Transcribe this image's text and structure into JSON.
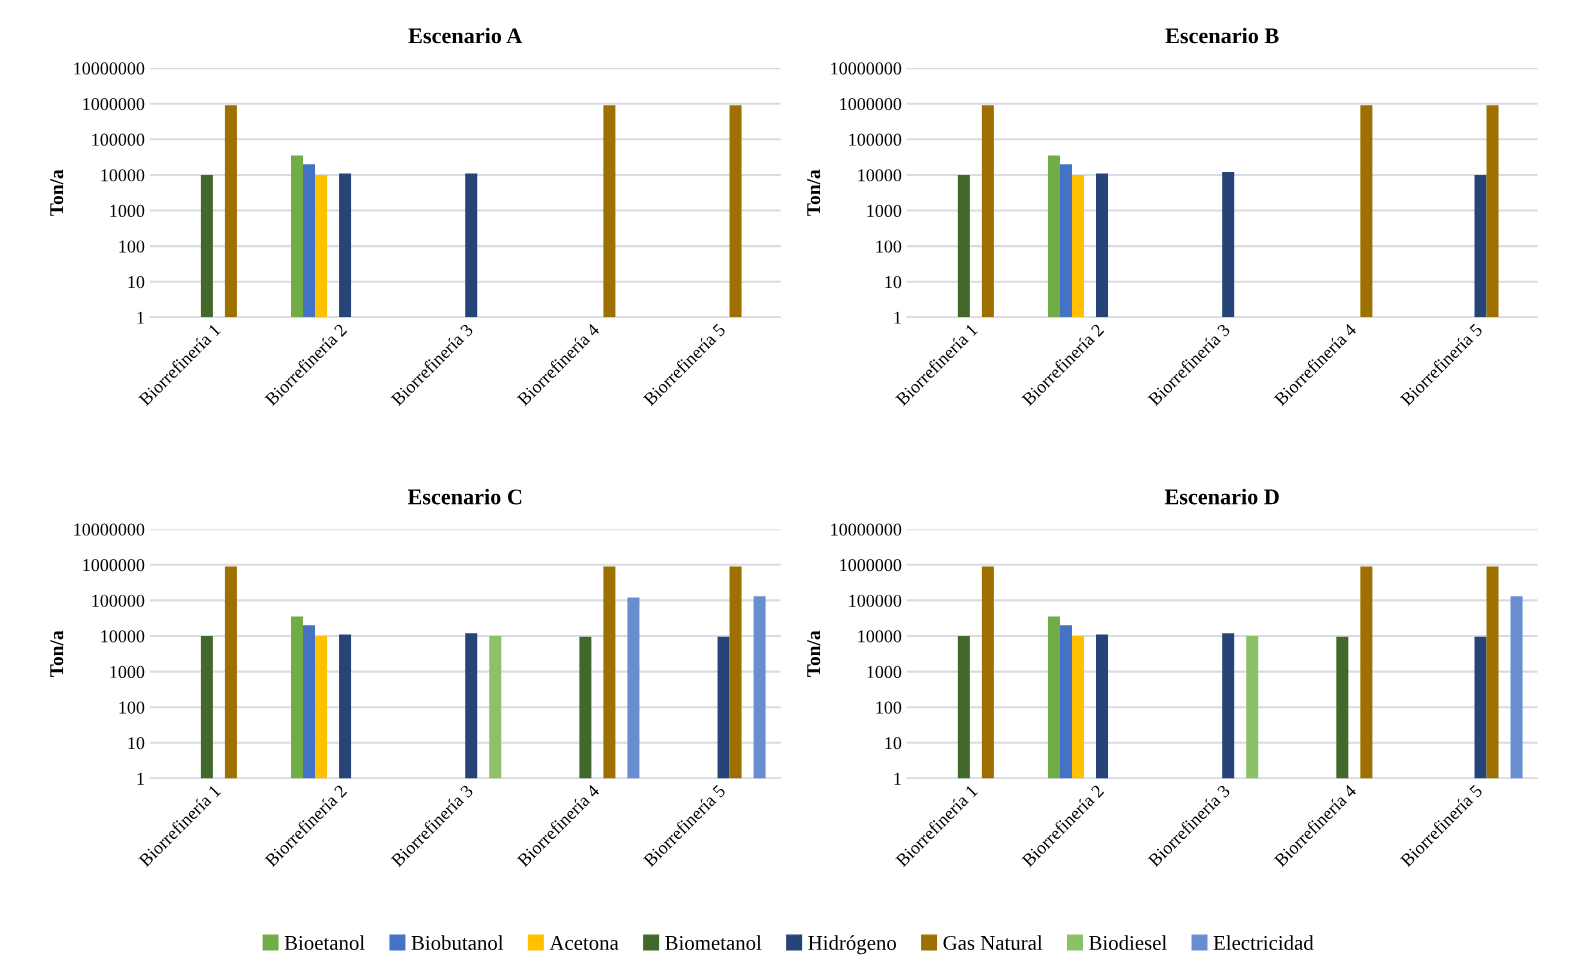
{
  "chart_data": [
    {
      "type": "bar",
      "title": "Escenario A",
      "ylabel": "Ton/a",
      "log": true,
      "grid": "y",
      "ylim": [
        1,
        10000000
      ],
      "yticks": [
        1,
        10,
        100,
        1000,
        10000,
        100000,
        1000000,
        10000000
      ],
      "legend": "bottom",
      "categories": [
        "Biorrefinería 1",
        "Biorrefinería 2",
        "Biorrefinería 3",
        "Biorrefinería 4",
        "Biorrefinería 5"
      ],
      "series": [
        {
          "name": "Bioetanol",
          "color": "#70ad47",
          "values": [
            null,
            35000,
            null,
            null,
            null
          ]
        },
        {
          "name": "Biobutanol",
          "color": "#4472c4",
          "values": [
            null,
            20000,
            null,
            null,
            null
          ]
        },
        {
          "name": "Acetona",
          "color": "#ffc000",
          "values": [
            null,
            10000,
            null,
            null,
            null
          ]
        },
        {
          "name": "Biometanol",
          "color": "#43682b",
          "values": [
            10000,
            null,
            null,
            null,
            null
          ]
        },
        {
          "name": "Hidrógeno",
          "color": "#264478",
          "values": [
            null,
            11000,
            11000,
            null,
            null
          ]
        },
        {
          "name": "Gas Natural",
          "color": "#9e7000",
          "values": [
            900000,
            null,
            null,
            900000,
            900000
          ]
        },
        {
          "name": "Biodiesel",
          "color": "#8cc168",
          "values": [
            null,
            null,
            null,
            null,
            null
          ]
        },
        {
          "name": "Electricidad",
          "color": "#698ed0",
          "values": [
            null,
            null,
            null,
            null,
            null
          ]
        }
      ]
    },
    {
      "type": "bar",
      "title": "Escenario B",
      "ylabel": "Ton/a",
      "log": true,
      "grid": "y",
      "ylim": [
        1,
        10000000
      ],
      "yticks": [
        1,
        10,
        100,
        1000,
        10000,
        100000,
        1000000,
        10000000
      ],
      "categories": [
        "Biorrefinería 1",
        "Biorrefinería 2",
        "Biorrefinería 3",
        "Biorrefinería 4",
        "Biorrefinería 5"
      ],
      "series": [
        {
          "color": "#70ad47",
          "values": [
            null,
            35000,
            null,
            null,
            null
          ]
        },
        {
          "color": "#4472c4",
          "values": [
            null,
            20000,
            null,
            null,
            null
          ]
        },
        {
          "color": "#ffc000",
          "values": [
            null,
            10000,
            null,
            null,
            null
          ]
        },
        {
          "color": "#43682b",
          "values": [
            10000,
            null,
            null,
            null,
            null
          ]
        },
        {
          "color": "#264478",
          "values": [
            null,
            11000,
            12000,
            null,
            10000
          ]
        },
        {
          "color": "#9e7000",
          "values": [
            900000,
            null,
            null,
            900000,
            900000
          ]
        },
        {
          "color": "#8cc168",
          "values": [
            null,
            null,
            null,
            null,
            null
          ]
        },
        {
          "color": "#698ed0",
          "values": [
            null,
            null,
            null,
            null,
            null
          ]
        }
      ]
    },
    {
      "type": "bar",
      "title": "Escenario C",
      "ylabel": "Ton/a",
      "log": true,
      "grid": "y",
      "ylim": [
        1,
        10000000
      ],
      "yticks": [
        1,
        10,
        100,
        1000,
        10000,
        100000,
        1000000,
        10000000
      ],
      "categories": [
        "Biorrefinería 1",
        "Biorrefinería 2",
        "Biorrefinería 3",
        "Biorrefinería 4",
        "Biorrefinería 5"
      ],
      "series": [
        {
          "color": "#70ad47",
          "values": [
            null,
            35000,
            null,
            null,
            null
          ]
        },
        {
          "color": "#4472c4",
          "values": [
            null,
            20000,
            null,
            null,
            null
          ]
        },
        {
          "color": "#ffc000",
          "values": [
            null,
            10000,
            null,
            null,
            null
          ]
        },
        {
          "color": "#43682b",
          "values": [
            10000,
            null,
            null,
            9500,
            null
          ]
        },
        {
          "color": "#264478",
          "values": [
            null,
            11000,
            12000,
            null,
            9500
          ]
        },
        {
          "color": "#9e7000",
          "values": [
            900000,
            null,
            null,
            900000,
            900000
          ]
        },
        {
          "color": "#8cc168",
          "values": [
            null,
            null,
            10000,
            null,
            null
          ]
        },
        {
          "color": "#698ed0",
          "values": [
            null,
            null,
            null,
            120000,
            130000
          ]
        }
      ]
    },
    {
      "type": "bar",
      "title": "Escenario D",
      "ylabel": "Ton/a",
      "log": true,
      "grid": "y",
      "ylim": [
        1,
        10000000
      ],
      "yticks": [
        1,
        10,
        100,
        1000,
        10000,
        100000,
        1000000,
        10000000
      ],
      "categories": [
        "Biorrefinería 1",
        "Biorrefinería 2",
        "Biorrefinería 3",
        "Biorrefinería 4",
        "Biorrefinería 5"
      ],
      "series": [
        {
          "color": "#70ad47",
          "values": [
            null,
            35000,
            null,
            null,
            null
          ]
        },
        {
          "color": "#4472c4",
          "values": [
            null,
            20000,
            null,
            null,
            null
          ]
        },
        {
          "color": "#ffc000",
          "values": [
            null,
            10000,
            null,
            null,
            null
          ]
        },
        {
          "color": "#43682b",
          "values": [
            10000,
            null,
            null,
            9500,
            null
          ]
        },
        {
          "color": "#264478",
          "values": [
            null,
            11000,
            12000,
            null,
            9500
          ]
        },
        {
          "color": "#9e7000",
          "values": [
            900000,
            null,
            null,
            900000,
            900000
          ]
        },
        {
          "color": "#8cc168",
          "values": [
            null,
            null,
            10000,
            null,
            null
          ]
        },
        {
          "color": "#698ed0",
          "values": [
            null,
            null,
            null,
            null,
            130000
          ]
        }
      ]
    }
  ]
}
